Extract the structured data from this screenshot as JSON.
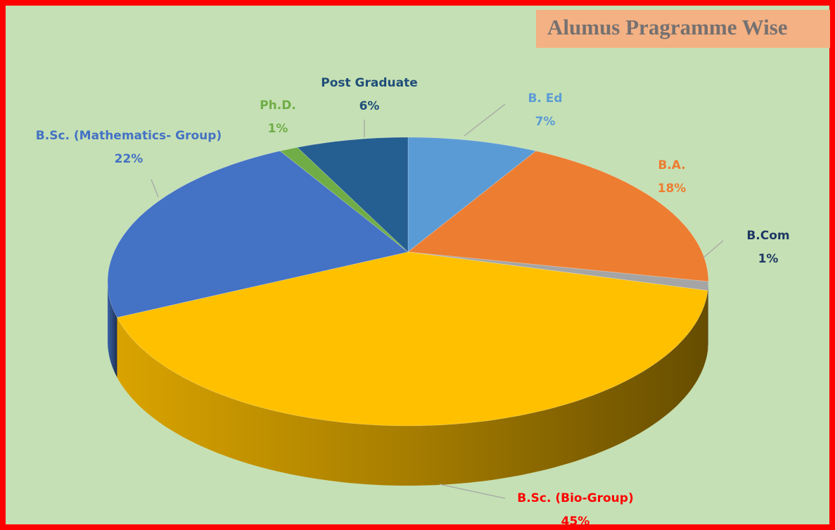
{
  "chart_data": {
    "type": "pie3d",
    "title": "Alumus Pragramme Wise",
    "categories": [
      "B. Ed",
      "B.A.",
      "B.Com",
      "B.Sc. (Bio-Group)",
      "B.Sc. (Mathematics- Group)",
      "Ph.D.",
      "Post Graduate"
    ],
    "values": [
      7,
      18,
      1,
      45,
      22,
      1,
      6
    ],
    "value_labels": [
      "7%",
      "18%",
      "1%",
      "45%",
      "22%",
      "1%",
      "6%"
    ],
    "colors": [
      "#5b9bd5",
      "#ed7d31",
      "#a5a5a5",
      "#ffc000",
      "#4472c4",
      "#70ad47",
      "#255e91"
    ],
    "label_colors": [
      "#5b9bd5",
      "#ed7d31",
      "#1f3864",
      "#ff0000",
      "#4472c4",
      "#70ad47",
      "#1f4e79"
    ]
  }
}
